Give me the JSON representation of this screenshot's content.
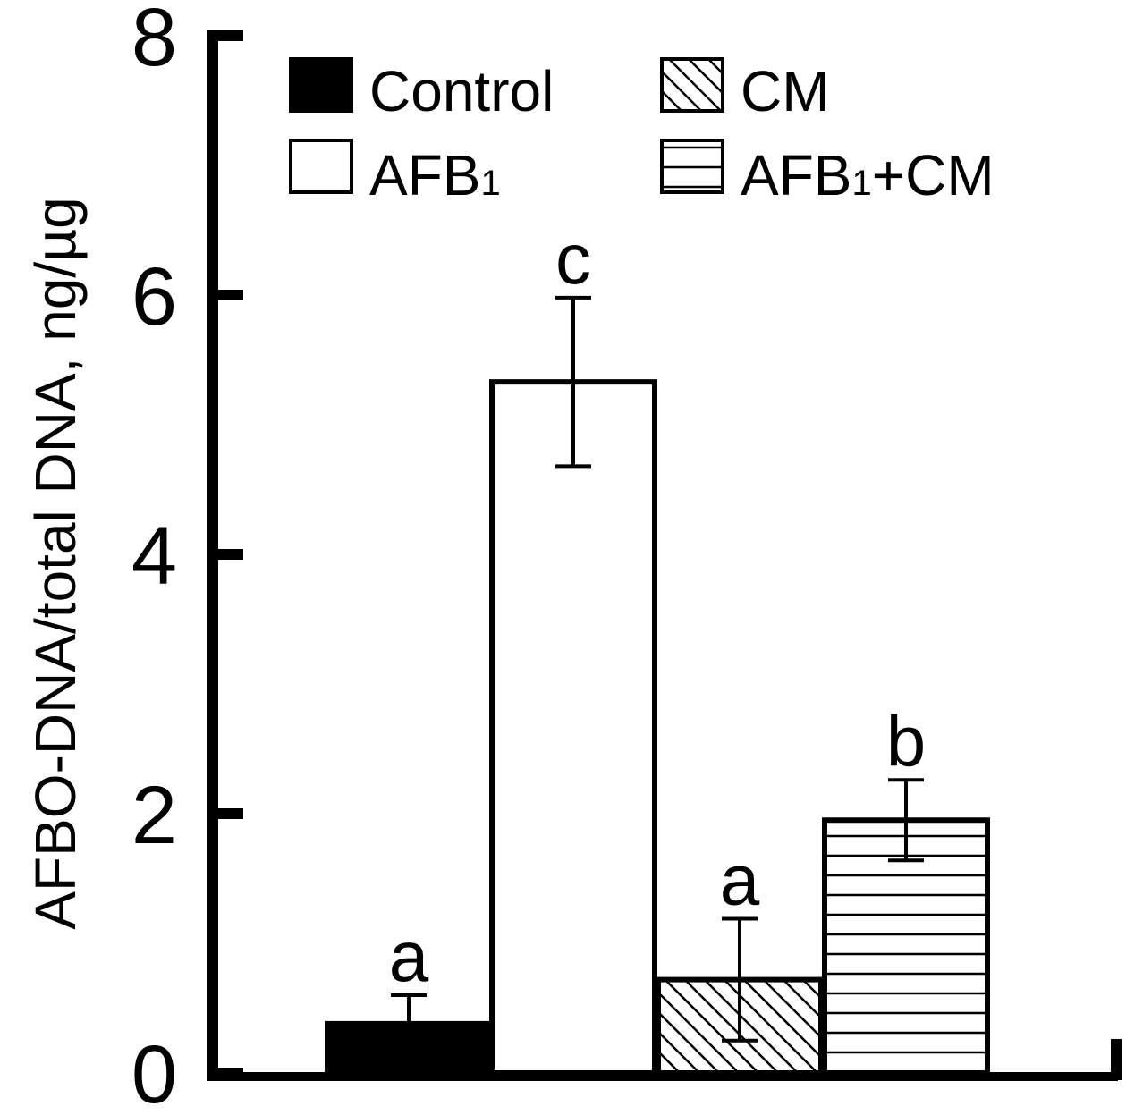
{
  "chart_data": {
    "type": "bar",
    "title": "",
    "xlabel": "",
    "ylabel": "AFBO-DNA/total DNA, ng/µg",
    "ylim": [
      0,
      8
    ],
    "yticks": [
      0,
      2,
      4,
      6,
      8
    ],
    "grid": false,
    "legend_position": "top",
    "categories": [
      "Control",
      "AFB1",
      "CM",
      "AFB1+CM"
    ],
    "series": [
      {
        "values": [
          0.38,
          5.33,
          0.72,
          1.95
        ],
        "errors": [
          0.22,
          0.65,
          0.47,
          0.31
        ],
        "significance": [
          "a",
          "c",
          "a",
          "b"
        ],
        "fills": [
          "solid-black",
          "white",
          "diagonal-hatch",
          "horizontal-hatch"
        ]
      }
    ],
    "legend": [
      {
        "label": "Control",
        "label_main": "Control",
        "label_sub": "",
        "label_tail": "",
        "fill": "solid-black"
      },
      {
        "label": "CM",
        "label_main": "CM",
        "label_sub": "",
        "label_tail": "",
        "fill": "diagonal-hatch"
      },
      {
        "label": "AFB1",
        "label_main": "AFB",
        "label_sub": "1",
        "label_tail": "",
        "fill": "white"
      },
      {
        "label": "AFB1+CM",
        "label_main": "AFB",
        "label_sub": "1",
        "label_tail": "+CM",
        "fill": "horizontal-hatch"
      }
    ],
    "colors": {
      "ink": "#000000",
      "background": "#ffffff"
    }
  }
}
